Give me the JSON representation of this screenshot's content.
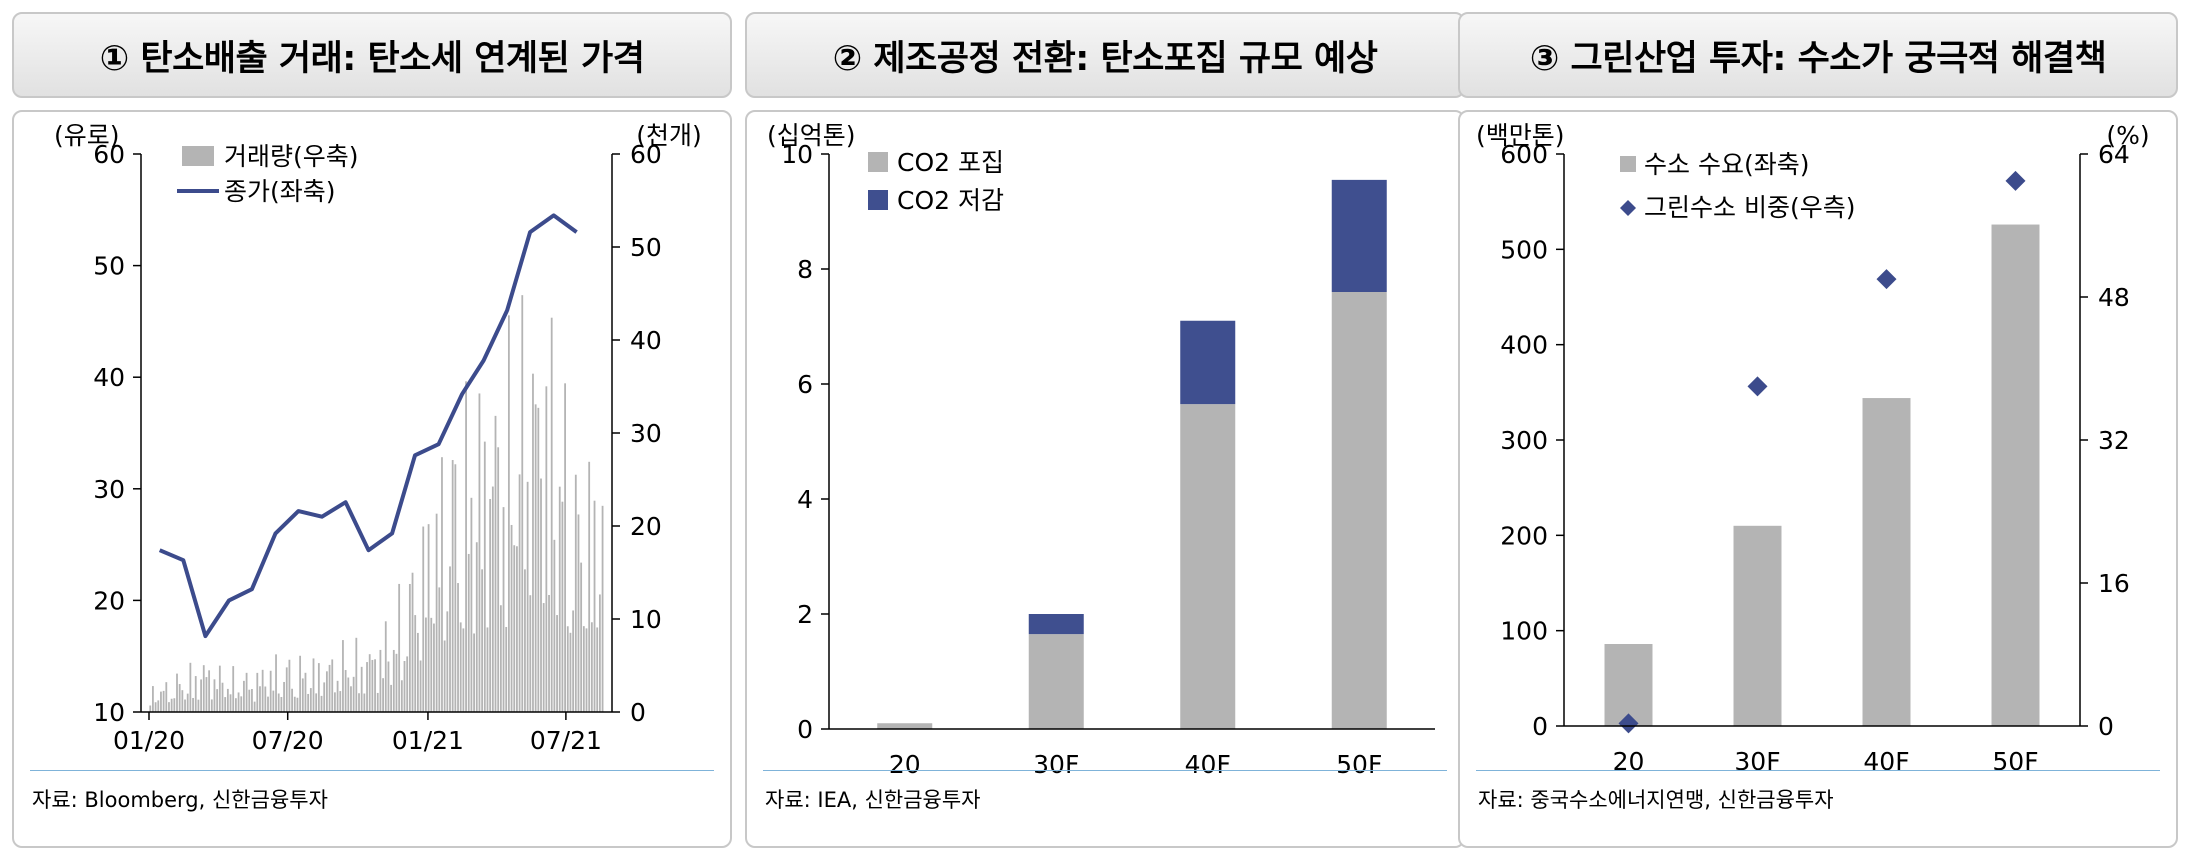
{
  "panels": [
    {
      "title": "① 탄소배출 거래: 탄소세 연계된 가격",
      "source": "자료: Bloomberg, 신한금융투자",
      "chart_data": {
        "type": "bar+line",
        "left_unit": "(유로)",
        "right_unit": "(천개)",
        "left_ticks": [
          "60",
          "50",
          "40",
          "30",
          "20",
          "10"
        ],
        "right_ticks": [
          "60",
          "50",
          "40",
          "30",
          "20",
          "10",
          "0"
        ],
        "x_ticks": [
          "01/20",
          "07/20",
          "01/21",
          "07/21"
        ],
        "ylim_left": [
          10,
          60
        ],
        "ylim_right": [
          0,
          60
        ],
        "legend": [
          {
            "label": "거래량(우축)",
            "type": "bar",
            "color": "#b4b4b4"
          },
          {
            "label": "종가(좌축)",
            "type": "line",
            "color": "#3c4b8c"
          }
        ],
        "price_series_monthly": [
          {
            "date": "2020-01",
            "close": 24.5
          },
          {
            "date": "2020-02",
            "close": 23.6
          },
          {
            "date": "2020-03",
            "close": 16.8
          },
          {
            "date": "2020-04",
            "close": 20.0
          },
          {
            "date": "2020-05",
            "close": 21.0
          },
          {
            "date": "2020-06",
            "close": 26.0
          },
          {
            "date": "2020-07",
            "close": 28.0
          },
          {
            "date": "2020-08",
            "close": 27.5
          },
          {
            "date": "2020-09",
            "close": 28.8
          },
          {
            "date": "2020-10",
            "close": 24.5
          },
          {
            "date": "2020-11",
            "close": 26.0
          },
          {
            "date": "2020-12",
            "close": 33.0
          },
          {
            "date": "2021-01",
            "close": 34.0
          },
          {
            "date": "2021-02",
            "close": 38.5
          },
          {
            "date": "2021-03",
            "close": 41.5
          },
          {
            "date": "2021-04",
            "close": 46.0
          },
          {
            "date": "2021-05",
            "close": 53.0
          },
          {
            "date": "2021-06",
            "close": 54.5
          },
          {
            "date": "2021-07",
            "close": 53.0
          }
        ],
        "volume_series_monthly_thousand": [
          {
            "date": "2020-01",
            "volume": 2
          },
          {
            "date": "2020-02",
            "volume": 3
          },
          {
            "date": "2020-03",
            "volume": 4
          },
          {
            "date": "2020-04",
            "volume": 3
          },
          {
            "date": "2020-05",
            "volume": 3
          },
          {
            "date": "2020-06",
            "volume": 4
          },
          {
            "date": "2020-07",
            "volume": 4
          },
          {
            "date": "2020-08",
            "volume": 4
          },
          {
            "date": "2020-09",
            "volume": 5
          },
          {
            "date": "2020-10",
            "volume": 5
          },
          {
            "date": "2020-11",
            "volume": 7
          },
          {
            "date": "2020-12",
            "volume": 12
          },
          {
            "date": "2021-01",
            "volume": 18
          },
          {
            "date": "2021-02",
            "volume": 22
          },
          {
            "date": "2021-03",
            "volume": 24
          },
          {
            "date": "2021-04",
            "volume": 26
          },
          {
            "date": "2021-05",
            "volume": 30
          },
          {
            "date": "2021-06",
            "volume": 28
          },
          {
            "date": "2021-07",
            "volume": 18
          }
        ]
      }
    },
    {
      "title": "② 제조공정 전환: 탄소포집 규모 예상",
      "source": "자료: IEA, 신한금융투자",
      "chart_data": {
        "type": "stacked-bar",
        "y_unit": "(십억톤)",
        "categories": [
          "20",
          "30F",
          "40F",
          "50F"
        ],
        "series": [
          {
            "name": "CO2 포집",
            "color": "#b4b4b4",
            "values": [
              0.1,
              1.65,
              5.65,
              7.6
            ]
          },
          {
            "name": "CO2 저감",
            "color": "#3f4f8f",
            "values": [
              0.0,
              0.35,
              1.45,
              1.95
            ]
          }
        ],
        "ylim": [
          0,
          10
        ],
        "y_ticks": [
          "10",
          "8",
          "6",
          "4",
          "2",
          "0"
        ]
      }
    },
    {
      "title": "③ 그린산업 투자: 수소가 궁극적 해결책",
      "source": "자료: 중국수소에너지연맹, 신한금융투자",
      "chart_data": {
        "type": "bar+scatter",
        "left_unit": "(백만톤)",
        "right_unit": "(%)",
        "categories": [
          "20",
          "30F",
          "40F",
          "50F"
        ],
        "series": [
          {
            "name": "수소 수요(좌축)",
            "type": "bar",
            "color": "#b4b4b4",
            "values": [
              86,
              210,
              344,
              526
            ],
            "axis": "left"
          },
          {
            "name": "그린수소 비중(우측)",
            "type": "scatter",
            "color": "#3c4b8c",
            "values": [
              0.3,
              38,
              50,
              61
            ],
            "axis": "right"
          }
        ],
        "ylim_left": [
          0,
          600
        ],
        "ylim_right": [
          0,
          64
        ],
        "left_ticks": [
          "600",
          "500",
          "400",
          "300",
          "200",
          "100",
          "0"
        ],
        "right_ticks": [
          "64",
          "48",
          "32",
          "16",
          "0"
        ]
      }
    }
  ]
}
